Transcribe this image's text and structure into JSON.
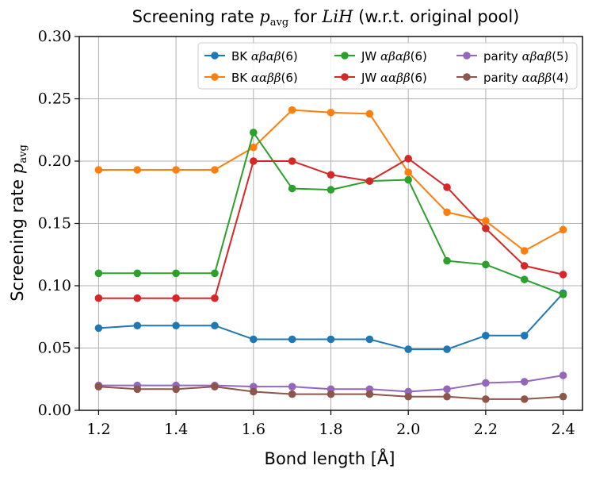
{
  "chart_data": {
    "type": "line",
    "title": "Screening rate p_avg for LiH (w.r.t. original pool)",
    "title_parts": {
      "pre": "Screening rate ",
      "var": "p",
      "sub": "avg",
      "mid": " for ",
      "mol": "LiH",
      "post": " (w.r.t. original pool)"
    },
    "xlabel": "Bond length [Å]",
    "ylabel": "Screening rate p_avg",
    "ylabel_parts": {
      "pre": "Screening rate ",
      "var": "p",
      "sub": "avg"
    },
    "xlim": [
      1.15,
      2.45
    ],
    "ylim": [
      0.0,
      0.3
    ],
    "xticks": [
      1.2,
      1.4,
      1.6,
      1.8,
      2.0,
      2.2,
      2.4
    ],
    "yticks": [
      0.0,
      0.05,
      0.1,
      0.15,
      0.2,
      0.25,
      0.3
    ],
    "xtick_labels": [
      "1.2",
      "1.4",
      "1.6",
      "1.8",
      "2.0",
      "2.2",
      "2.4"
    ],
    "ytick_labels": [
      "0.00",
      "0.05",
      "0.10",
      "0.15",
      "0.20",
      "0.25",
      "0.30"
    ],
    "grid": true,
    "legend_position": "top-right",
    "legend_columns": 3,
    "x": [
      1.2,
      1.3,
      1.4,
      1.5,
      1.6,
      1.7,
      1.8,
      1.9,
      2.0,
      2.1,
      2.2,
      2.3,
      2.4
    ],
    "series": [
      {
        "name": "BK αβαβ(6)",
        "label_pre": "BK",
        "label_math": "αβαβ",
        "label_post": "(6)",
        "color": "#1f77b4",
        "values": [
          0.066,
          0.068,
          0.068,
          0.068,
          0.057,
          0.057,
          0.057,
          0.057,
          0.049,
          0.049,
          0.06,
          0.06,
          0.094
        ]
      },
      {
        "name": "BK ααββ(6)",
        "label_pre": "BK",
        "label_math": "ααββ",
        "label_post": "(6)",
        "color": "#ff7f0e",
        "values": [
          0.193,
          0.193,
          0.193,
          0.193,
          0.211,
          0.241,
          0.239,
          0.238,
          0.191,
          0.159,
          0.152,
          0.128,
          0.145
        ]
      },
      {
        "name": "JW αβαβ(6)",
        "label_pre": "JW",
        "label_math": "αβαβ",
        "label_post": "(6)",
        "color": "#2ca02c",
        "values": [
          0.11,
          0.11,
          0.11,
          0.11,
          0.223,
          0.178,
          0.177,
          0.184,
          0.185,
          0.12,
          0.117,
          0.105,
          0.093
        ]
      },
      {
        "name": "JW ααββ(6)",
        "label_pre": "JW",
        "label_math": "ααββ",
        "label_post": "(6)",
        "color": "#d62728",
        "values": [
          0.09,
          0.09,
          0.09,
          0.09,
          0.2,
          0.2,
          0.189,
          0.184,
          0.202,
          0.179,
          0.146,
          0.116,
          0.109
        ]
      },
      {
        "name": "parity αβαβ(5)",
        "label_pre": "parity",
        "label_math": "αβαβ",
        "label_post": "(5)",
        "color": "#9467bd",
        "values": [
          0.02,
          0.02,
          0.02,
          0.02,
          0.019,
          0.019,
          0.017,
          0.017,
          0.015,
          0.017,
          0.022,
          0.023,
          0.028
        ]
      },
      {
        "name": "parity ααββ(4)",
        "label_pre": "parity",
        "label_math": "ααββ",
        "label_post": "(4)",
        "color": "#8c564b",
        "values": [
          0.019,
          0.017,
          0.017,
          0.019,
          0.015,
          0.013,
          0.013,
          0.013,
          0.011,
          0.011,
          0.009,
          0.009,
          0.011
        ]
      }
    ]
  }
}
